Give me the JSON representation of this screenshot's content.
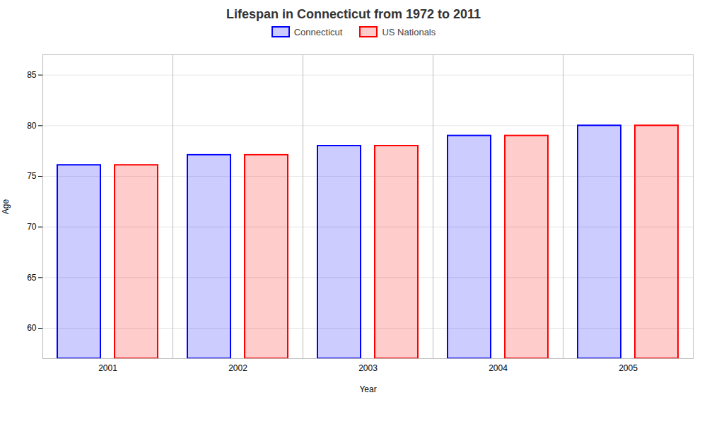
{
  "chart_data": {
    "type": "bar",
    "title": "Lifespan in Connecticut from 1972 to 2011",
    "xlabel": "Year",
    "ylabel": "Age",
    "categories": [
      "2001",
      "2002",
      "2003",
      "2004",
      "2005"
    ],
    "series": [
      {
        "name": "Connecticut",
        "color": "#0000ff",
        "values": [
          76.1,
          77.1,
          78.0,
          79.0,
          80.0
        ]
      },
      {
        "name": "US Nationals",
        "color": "#ff0000",
        "values": [
          76.1,
          77.1,
          78.0,
          79.0,
          80.0
        ]
      }
    ],
    "ylim": [
      57,
      87
    ],
    "yticks": [
      60,
      65,
      70,
      75,
      80,
      85
    ],
    "grid": true,
    "legend": "top"
  }
}
